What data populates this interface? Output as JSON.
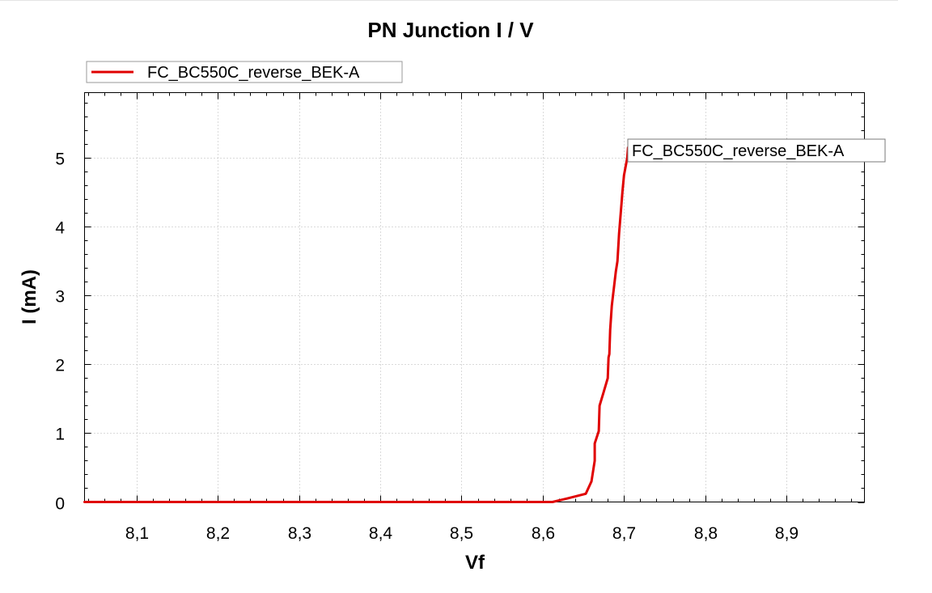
{
  "chart_data": {
    "type": "line",
    "title": "PN Junction I / V",
    "xlabel": "Vf",
    "ylabel": "I (mA)",
    "xlim": [
      8.036,
      8.996
    ],
    "ylim": [
      0,
      5.95
    ],
    "x_ticks": [
      "8,1",
      "8,2",
      "8,3",
      "8,4",
      "8,5",
      "8,6",
      "8,7",
      "8,8",
      "8,9"
    ],
    "x_tick_values": [
      8.1,
      8.2,
      8.3,
      8.4,
      8.5,
      8.6,
      8.7,
      8.8,
      8.9
    ],
    "y_ticks": [
      "0",
      "1",
      "2",
      "3",
      "4",
      "5"
    ],
    "y_tick_values": [
      0,
      1,
      2,
      3,
      4,
      5
    ],
    "grid": true,
    "legend": {
      "position": "top-left",
      "entries": [
        "FC_BC550C_reverse_BEK-A"
      ]
    },
    "series": [
      {
        "name": "FC_BC550C_reverse_BEK-A",
        "color": "#e00000",
        "label": "FC_BC550C_reverse_BEK-A",
        "points": [
          [
            8.036,
            0
          ],
          [
            8.3,
            0
          ],
          [
            8.5,
            0
          ],
          [
            8.612,
            0
          ],
          [
            8.63,
            0.05
          ],
          [
            8.653,
            0.12
          ],
          [
            8.66,
            0.3
          ],
          [
            8.664,
            0.6
          ],
          [
            8.664,
            0.85
          ],
          [
            8.669,
            1.03
          ],
          [
            8.67,
            1.4
          ],
          [
            8.675,
            1.6
          ],
          [
            8.68,
            1.8
          ],
          [
            8.681,
            2.1
          ],
          [
            8.682,
            2.15
          ],
          [
            8.683,
            2.5
          ],
          [
            8.685,
            2.85
          ],
          [
            8.687,
            3.05
          ],
          [
            8.69,
            3.35
          ],
          [
            8.692,
            3.5
          ],
          [
            8.694,
            3.9
          ],
          [
            8.697,
            4.35
          ],
          [
            8.698,
            4.5
          ],
          [
            8.7,
            4.75
          ],
          [
            8.704,
            5.0
          ],
          [
            8.705,
            5.15
          ]
        ]
      }
    ]
  }
}
